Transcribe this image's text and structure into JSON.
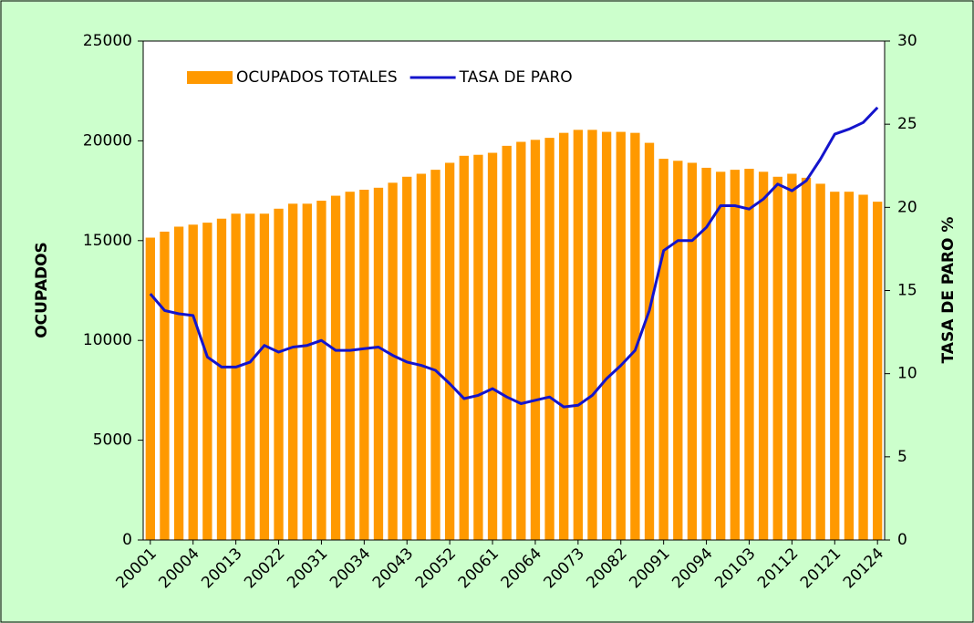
{
  "chart_data": {
    "type": "bar",
    "categories": [
      "20001",
      null,
      null,
      "20004",
      null,
      null,
      "20013",
      null,
      null,
      "20022",
      null,
      null,
      "20031",
      null,
      null,
      "20034",
      null,
      null,
      "20043",
      null,
      null,
      "20052",
      null,
      null,
      "20061",
      null,
      null,
      "20064",
      null,
      null,
      "20073",
      null,
      null,
      "20082",
      null,
      null,
      "20091",
      null,
      null,
      "20094",
      null,
      null,
      "20103",
      null,
      null,
      "20112",
      null,
      null,
      "20121",
      null,
      null,
      "20124"
    ],
    "series": [
      {
        "name": "OCUPADOS TOTALES",
        "type": "bar",
        "color": "#ff9900",
        "values": [
          15150,
          15450,
          15700,
          15800,
          15900,
          16100,
          16350,
          16350,
          16350,
          16600,
          16850,
          16850,
          17000,
          17250,
          17450,
          17550,
          17650,
          17900,
          18200,
          18350,
          18550,
          18900,
          19250,
          19300,
          19400,
          19750,
          19950,
          20050,
          20150,
          20400,
          20550,
          20550,
          20450,
          20450,
          20400,
          19900,
          19100,
          19000,
          18900,
          18650,
          18450,
          18550,
          18600,
          18450,
          18200,
          18350,
          18150,
          17850,
          17450,
          17450,
          17300,
          16950
        ]
      },
      {
        "name": "TASA DE PARO",
        "type": "line",
        "axis": "y2",
        "color": "#1414cc",
        "values": [
          14.8,
          13.8,
          13.6,
          13.5,
          11.0,
          10.4,
          10.4,
          10.7,
          11.7,
          11.3,
          11.6,
          11.7,
          12.0,
          11.4,
          11.4,
          11.5,
          11.6,
          11.1,
          10.7,
          10.5,
          10.2,
          9.4,
          8.5,
          8.7,
          9.1,
          8.6,
          8.2,
          8.4,
          8.6,
          8.0,
          8.1,
          8.7,
          9.7,
          10.5,
          11.4,
          13.8,
          17.4,
          18.0,
          18.0,
          18.8,
          20.1,
          20.1,
          19.9,
          20.5,
          21.4,
          21.0,
          21.6,
          22.9,
          24.4,
          24.7,
          25.1,
          26.0
        ]
      }
    ],
    "y_label": "OCUPADOS",
    "y2_label": "TASA DE PARO %",
    "ylim": [
      0,
      25000
    ],
    "yticks": [
      0,
      5000,
      10000,
      15000,
      20000,
      25000
    ],
    "y2lim": [
      0,
      30
    ],
    "y2ticks": [
      0,
      5,
      10,
      15,
      20,
      25,
      30
    ],
    "legend": "top-left"
  }
}
